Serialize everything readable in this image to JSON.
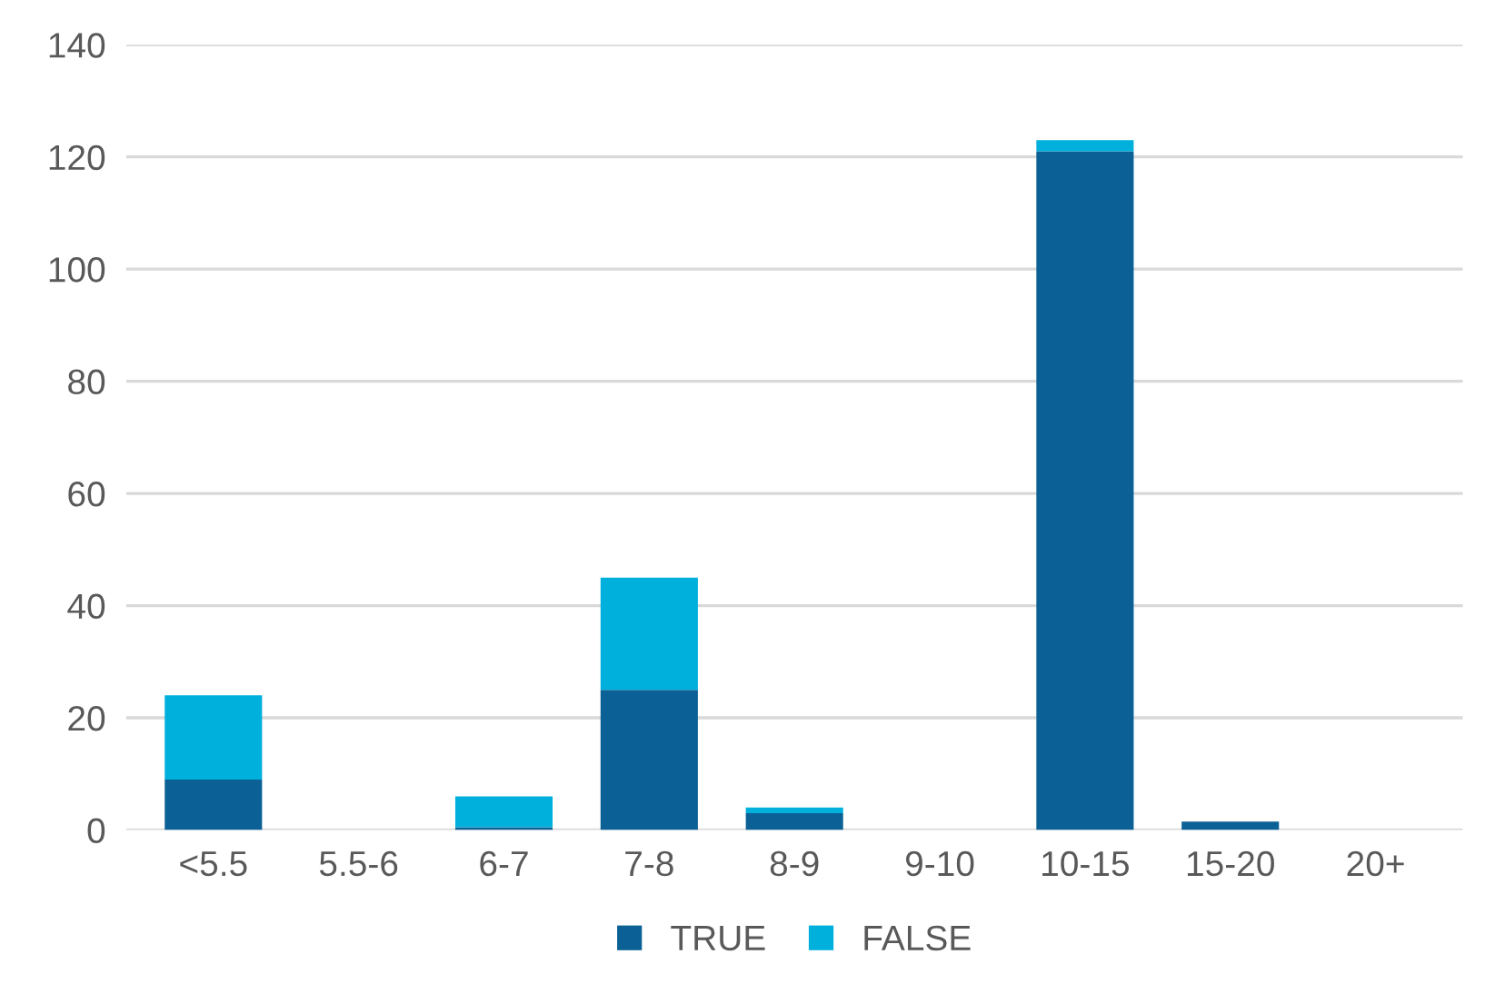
{
  "chart_data": {
    "type": "bar",
    "stacked": true,
    "categories": [
      "<5.5",
      "5.5-6",
      "6-7",
      "7-8",
      "8-9",
      "9-10",
      "10-15",
      "15-20",
      "20+"
    ],
    "series": [
      {
        "name": "TRUE",
        "color": "#0b6196",
        "values": [
          9,
          0,
          0.5,
          25,
          3,
          0,
          121,
          1.5,
          0
        ]
      },
      {
        "name": "FALSE",
        "color": "#00b0dc",
        "values": [
          15,
          0,
          5.5,
          20,
          1,
          0,
          2,
          0,
          0
        ]
      }
    ],
    "ylim": [
      0,
      140
    ],
    "yticks": [
      0,
      20,
      40,
      60,
      80,
      100,
      120,
      140
    ],
    "grid": "y",
    "legend": "bottom"
  }
}
